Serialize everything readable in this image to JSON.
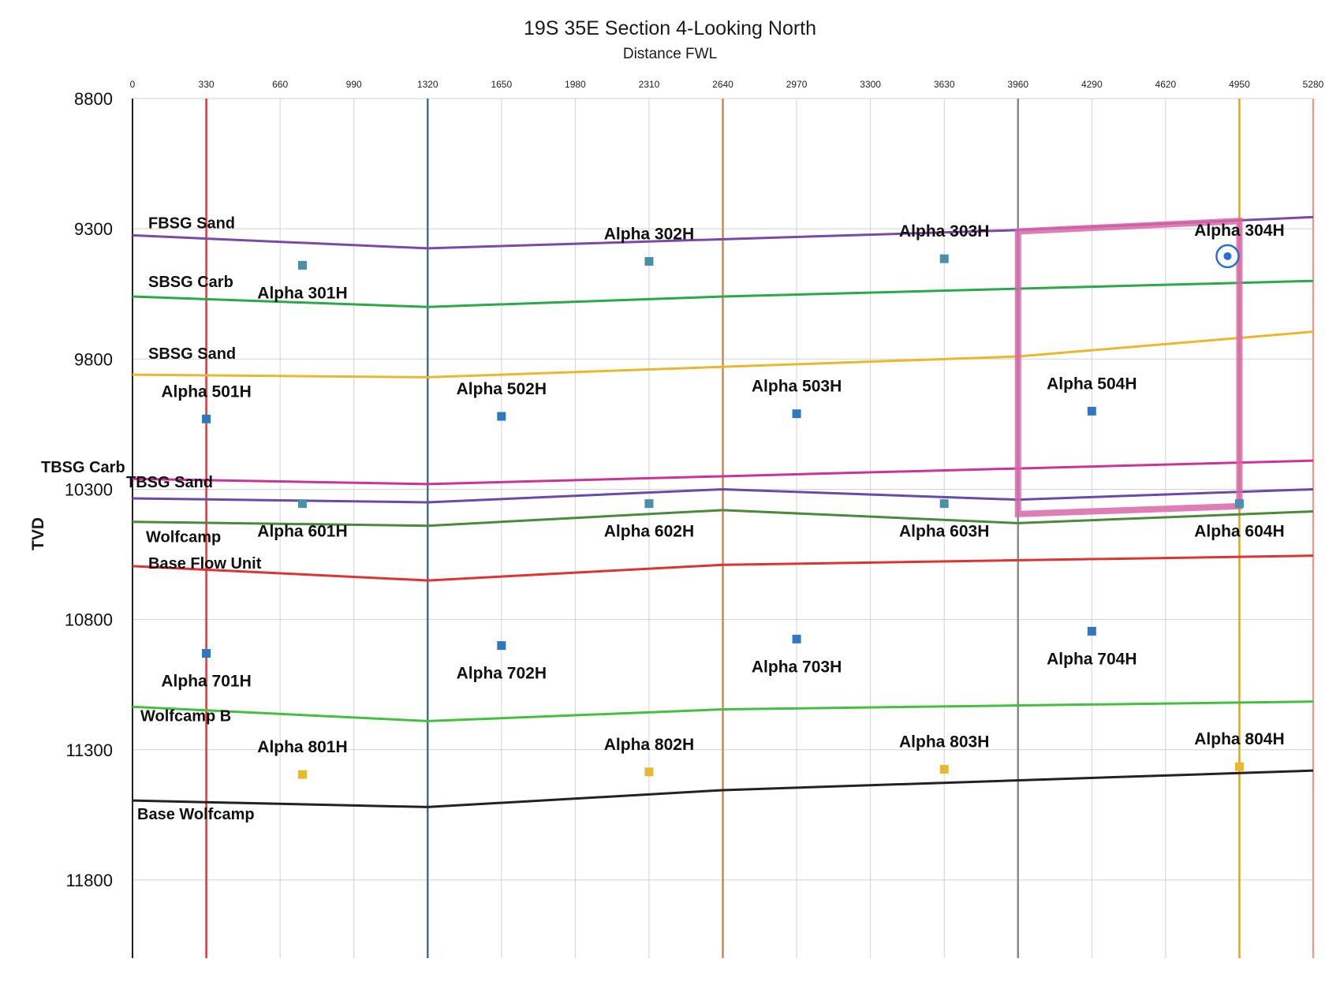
{
  "chart_data": {
    "type": "scatter",
    "title": "19S 35E Section 4-Looking North",
    "subtitle": "Distance FWL",
    "ylabel": "TVD",
    "xlim": [
      0,
      5280
    ],
    "ylim": [
      8800,
      12100
    ],
    "y_inverted": true,
    "grid": true,
    "x_ticks": [
      0,
      330,
      660,
      990,
      1320,
      1650,
      1980,
      2310,
      2640,
      2970,
      3300,
      3630,
      3960,
      4290,
      4620,
      4950,
      5280
    ],
    "y_ticks": [
      8800,
      9300,
      9800,
      10300,
      10800,
      11300,
      11800
    ],
    "vertical_lines": [
      {
        "x": 330,
        "color": "#d93a3a"
      },
      {
        "x": 1320,
        "color": "#3f6f9a"
      },
      {
        "x": 2640,
        "color": "#c88a4a"
      },
      {
        "x": 3960,
        "color": "#8a8a8a"
      },
      {
        "x": 4950,
        "color": "#d6a830"
      },
      {
        "x": 5280,
        "color": "#e0a090"
      }
    ],
    "layers": [
      {
        "name": "FBSG Sand",
        "color": "#7a4aa6",
        "points": [
          [
            0,
            9325
          ],
          [
            1320,
            9375
          ],
          [
            3960,
            9305
          ],
          [
            5280,
            9255
          ]
        ]
      },
      {
        "name": "SBSG Carb",
        "color": "#2aa84a",
        "points": [
          [
            0,
            9560
          ],
          [
            1320,
            9600
          ],
          [
            2640,
            9560
          ],
          [
            5280,
            9500
          ]
        ]
      },
      {
        "name": "SBSG Sand",
        "color": "#e8b830",
        "points": [
          [
            0,
            9860
          ],
          [
            1320,
            9870
          ],
          [
            3960,
            9790
          ],
          [
            5280,
            9695
          ]
        ]
      },
      {
        "name": "TBSG Carb",
        "color": "#cc3399",
        "points": [
          [
            0,
            10260
          ],
          [
            1320,
            10280
          ],
          [
            2640,
            10250
          ],
          [
            5280,
            10190
          ]
        ]
      },
      {
        "name": "TBSG Sand",
        "color": "#6a4aa6",
        "points": [
          [
            0,
            10335
          ],
          [
            1320,
            10350
          ],
          [
            2640,
            10300
          ],
          [
            3960,
            10340
          ],
          [
            5280,
            10300
          ]
        ]
      },
      {
        "name": "Wolfcamp",
        "color": "#4a8a3a",
        "points": [
          [
            0,
            10425
          ],
          [
            1320,
            10440
          ],
          [
            2640,
            10380
          ],
          [
            3960,
            10430
          ],
          [
            5280,
            10385
          ]
        ]
      },
      {
        "name": "Base Flow Unit",
        "color": "#dd3333",
        "points": [
          [
            0,
            10595
          ],
          [
            1320,
            10650
          ],
          [
            2640,
            10590
          ],
          [
            5280,
            10555
          ]
        ]
      },
      {
        "name": "Wolfcamp B",
        "color": "#44c040",
        "points": [
          [
            0,
            11135
          ],
          [
            1320,
            11190
          ],
          [
            2640,
            11145
          ],
          [
            5280,
            11115
          ]
        ]
      },
      {
        "name": "Base Wolfcamp",
        "color": "#222222",
        "points": [
          [
            0,
            11495
          ],
          [
            1320,
            11520
          ],
          [
            2640,
            11455
          ],
          [
            5280,
            11380
          ]
        ]
      }
    ],
    "wells": [
      {
        "name": "Alpha 301H",
        "x": 760,
        "y": 9440,
        "color": "#4d8fa8"
      },
      {
        "name": "Alpha 302H",
        "x": 2310,
        "y": 9425,
        "color": "#4d8fa8"
      },
      {
        "name": "Alpha 303H",
        "x": 3630,
        "y": 9415,
        "color": "#4d8fa8"
      },
      {
        "name": "Alpha 304H",
        "x": 4950,
        "y": 9405,
        "color": "#2a6fcf"
      },
      {
        "name": "Alpha 501H",
        "x": 330,
        "y": 10030,
        "color": "#2f78c0"
      },
      {
        "name": "Alpha 502H",
        "x": 1650,
        "y": 10020,
        "color": "#2f78c0"
      },
      {
        "name": "Alpha 503H",
        "x": 2970,
        "y": 10010,
        "color": "#2f78c0"
      },
      {
        "name": "Alpha 504H",
        "x": 4290,
        "y": 10000,
        "color": "#2f78c0"
      },
      {
        "name": "Alpha 601H",
        "x": 760,
        "y": 10355,
        "color": "#4d8fa8"
      },
      {
        "name": "Alpha 602H",
        "x": 2310,
        "y": 10355,
        "color": "#4d8fa8"
      },
      {
        "name": "Alpha 603H",
        "x": 3630,
        "y": 10355,
        "color": "#4d8fa8"
      },
      {
        "name": "Alpha 604H",
        "x": 4950,
        "y": 10355,
        "color": "#4d8fa8"
      },
      {
        "name": "Alpha 701H",
        "x": 330,
        "y": 10930,
        "color": "#2f78c0"
      },
      {
        "name": "Alpha 702H",
        "x": 1650,
        "y": 10900,
        "color": "#2f78c0"
      },
      {
        "name": "Alpha 703H",
        "x": 2970,
        "y": 10875,
        "color": "#2f78c0"
      },
      {
        "name": "Alpha 704H",
        "x": 4290,
        "y": 10845,
        "color": "#2f78c0"
      },
      {
        "name": "Alpha 801H",
        "x": 760,
        "y": 11395,
        "color": "#e8b830"
      },
      {
        "name": "Alpha 802H",
        "x": 2310,
        "y": 11385,
        "color": "#e8b830"
      },
      {
        "name": "Alpha 803H",
        "x": 3630,
        "y": 11375,
        "color": "#e8b830"
      },
      {
        "name": "Alpha 804H",
        "x": 4950,
        "y": 11365,
        "color": "#e8b830"
      }
    ],
    "highlight_box": {
      "color": "#d966a8",
      "corners": [
        [
          3960,
          9310
        ],
        [
          4950,
          9270
        ],
        [
          4950,
          10365
        ],
        [
          3960,
          10395
        ]
      ]
    }
  }
}
